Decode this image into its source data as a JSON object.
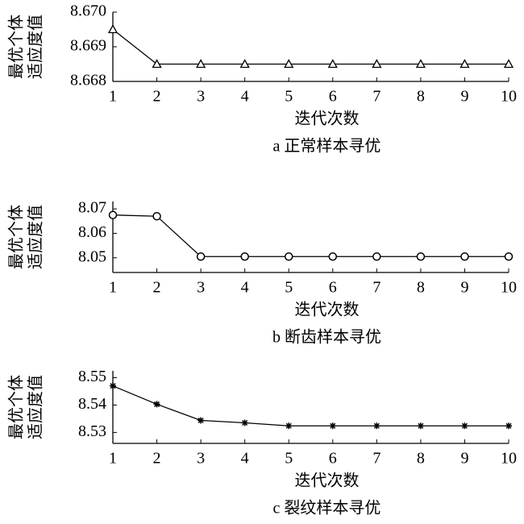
{
  "chart_data": [
    {
      "type": "line",
      "marker": "triangle",
      "color": "#000000",
      "ylabel": [
        "最优个体",
        "适应度值"
      ],
      "xlabel": "迭代次数",
      "caption": "a 正常样本寻优",
      "x": [
        1,
        2,
        3,
        4,
        5,
        6,
        7,
        8,
        9,
        10
      ],
      "values": [
        8.6695,
        8.6685,
        8.6685,
        8.6685,
        8.6685,
        8.6685,
        8.6685,
        8.6685,
        8.6685,
        8.6685
      ],
      "xlim": [
        1,
        10
      ],
      "xticks": [
        1,
        2,
        3,
        4,
        5,
        6,
        7,
        8,
        9,
        10
      ],
      "ylim": [
        8.668,
        8.67
      ],
      "yticks": [
        {
          "value": 8.668,
          "label": "8.668"
        },
        {
          "value": 8.669,
          "label": "8.669"
        },
        {
          "value": 8.67,
          "label": "8.670"
        }
      ]
    },
    {
      "type": "line",
      "marker": "circle",
      "color": "#000000",
      "ylabel": [
        "最优个体",
        "适应度值"
      ],
      "xlabel": "迭代次数",
      "caption": "b 断齿样本寻优",
      "x": [
        1,
        2,
        3,
        4,
        5,
        6,
        7,
        8,
        9,
        10
      ],
      "values": [
        8.0675,
        8.067,
        8.0505,
        8.0505,
        8.0505,
        8.0505,
        8.0505,
        8.0505,
        8.0505,
        8.0505
      ],
      "xlim": [
        1,
        10
      ],
      "xticks": [
        1,
        2,
        3,
        4,
        5,
        6,
        7,
        8,
        9,
        10
      ],
      "ylim": [
        8.044,
        8.073
      ],
      "yticks": [
        8.05,
        8.06,
        8.07
      ]
    },
    {
      "type": "line",
      "marker": "star",
      "color": "#000000",
      "ylabel": [
        "最优个体",
        "适应度值"
      ],
      "xlabel": "迭代次数",
      "caption": "c 裂纹样本寻优",
      "x": [
        1,
        2,
        3,
        4,
        5,
        6,
        7,
        8,
        9,
        10
      ],
      "values": [
        8.547,
        8.5403,
        8.5344,
        8.5335,
        8.5324,
        8.5324,
        8.5324,
        8.5324,
        8.5324,
        8.5324
      ],
      "xlim": [
        1,
        10
      ],
      "xticks": [
        1,
        2,
        3,
        4,
        5,
        6,
        7,
        8,
        9,
        10
      ],
      "ylim": [
        8.526,
        8.5525
      ],
      "yticks": [
        8.53,
        8.54,
        8.55
      ]
    }
  ]
}
